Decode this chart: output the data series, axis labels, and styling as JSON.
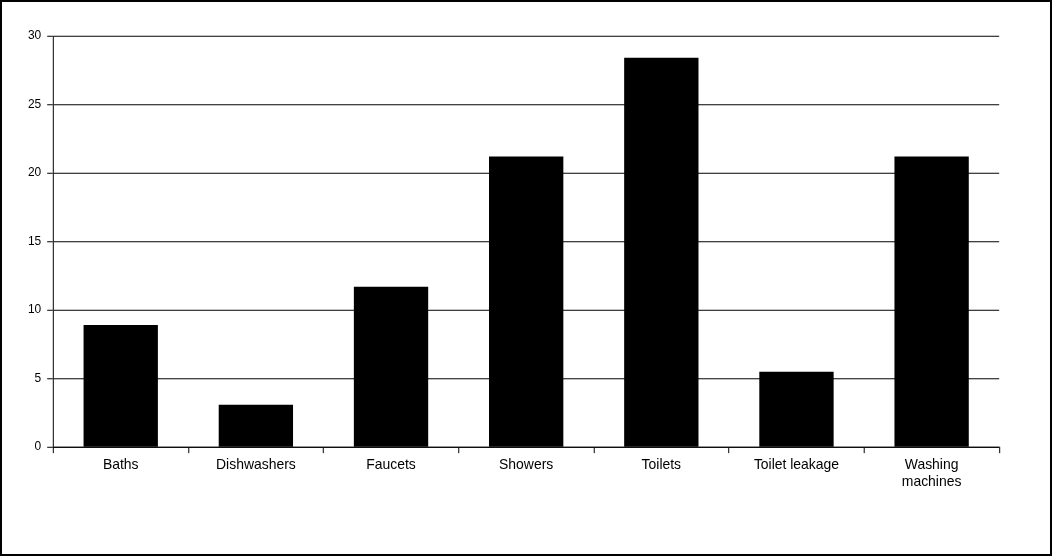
{
  "chart_data": {
    "type": "bar",
    "categories": [
      "Baths",
      "Dishwashers",
      "Faucets",
      "Showers",
      "Toilets",
      "Toilet leakage",
      "Washing machines"
    ],
    "values": [
      8.9,
      3.1,
      11.7,
      21.2,
      28.4,
      5.5,
      21.2
    ],
    "color": "#000000",
    "ylim": [
      0,
      30
    ],
    "yticks": [
      0,
      5,
      10,
      15,
      20,
      25,
      30
    ],
    "grid": "y",
    "legend": false
  }
}
